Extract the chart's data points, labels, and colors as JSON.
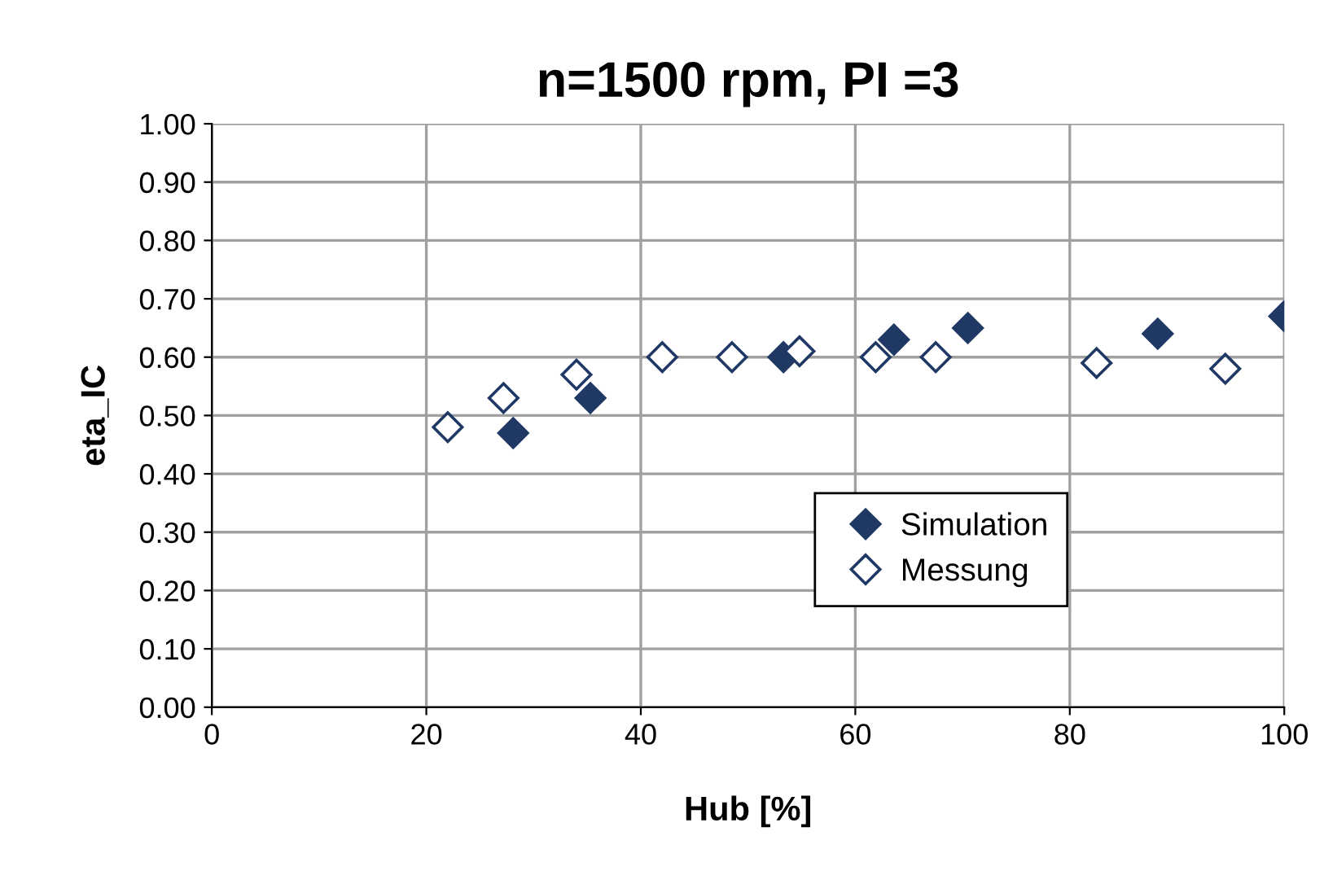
{
  "chart_data": {
    "type": "scatter",
    "title": "n=1500 rpm, PI =3",
    "xlabel": "Hub [%]",
    "ylabel": "eta_IC",
    "xlim": [
      0,
      100
    ],
    "ylim": [
      0,
      1
    ],
    "xticks": [
      0,
      20,
      40,
      60,
      80,
      100
    ],
    "yticks": [
      {
        "value": 0,
        "label": "0.00"
      },
      {
        "value": 0.1,
        "label": "0.10"
      },
      {
        "value": 0.2,
        "label": "0.20"
      },
      {
        "value": 0.3,
        "label": "0.30"
      },
      {
        "value": 0.4,
        "label": "0.40"
      },
      {
        "value": 0.5,
        "label": "0.50"
      },
      {
        "value": 0.6,
        "label": "0.60"
      },
      {
        "value": 0.7,
        "label": "0.70"
      },
      {
        "value": 0.8,
        "label": "0.80"
      },
      {
        "value": 0.9,
        "label": "0.90"
      },
      {
        "value": 1,
        "label": "1.00"
      }
    ],
    "grid": true,
    "legend": "right",
    "marker": "diamond",
    "series": [
      {
        "name": "Simulation",
        "color": "#1f3864",
        "x": [
          28.1,
          35.3,
          53.3,
          63.6,
          70.5,
          88.2,
          100
        ],
        "values": [
          0.47,
          0.53,
          0.6,
          0.63,
          0.65,
          0.64,
          0.67
        ]
      },
      {
        "name": "Messung",
        "color": "#ffffff",
        "x": [
          22,
          27.2,
          34,
          42,
          48.5,
          54.8,
          61.9,
          67.5,
          82.5,
          94.5
        ],
        "values": [
          0.48,
          0.53,
          0.57,
          0.6,
          0.6,
          0.61,
          0.6,
          0.6,
          0.59,
          0.58
        ]
      }
    ]
  }
}
